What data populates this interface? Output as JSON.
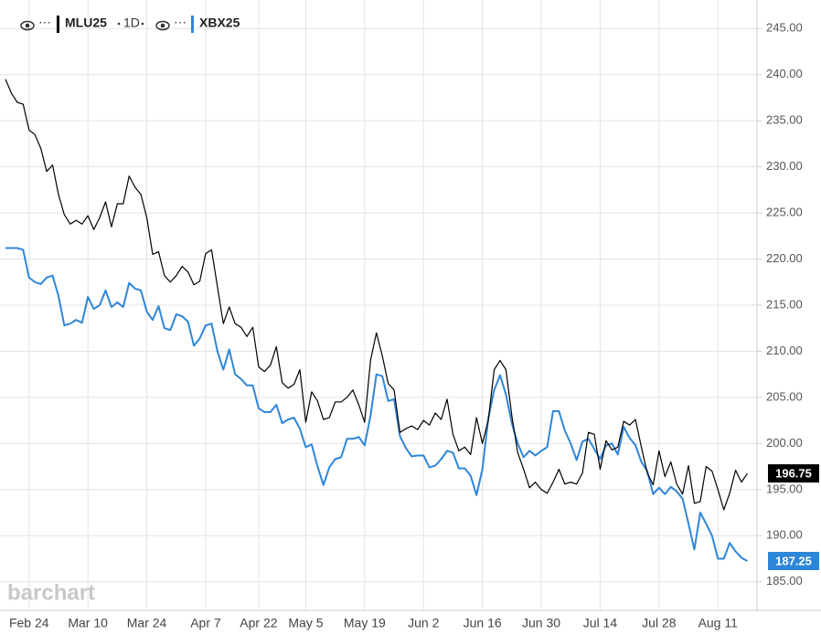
{
  "chart_data": {
    "type": "line",
    "interval": "1D",
    "watermark": "barchart",
    "categories": [
      null,
      null,
      null,
      null,
      "Feb 24",
      null,
      null,
      null,
      null,
      null,
      null,
      null,
      null,
      null,
      "Mar 10",
      null,
      null,
      null,
      null,
      null,
      null,
      null,
      null,
      null,
      "Mar 24",
      null,
      null,
      null,
      null,
      null,
      null,
      null,
      null,
      null,
      "Apr 7",
      null,
      null,
      null,
      null,
      null,
      null,
      null,
      null,
      "Apr 22",
      null,
      null,
      null,
      null,
      null,
      null,
      null,
      "May 5",
      null,
      null,
      null,
      null,
      null,
      null,
      null,
      null,
      null,
      "May 19",
      null,
      null,
      null,
      null,
      null,
      null,
      null,
      null,
      null,
      "Jun 2",
      null,
      null,
      null,
      null,
      null,
      null,
      null,
      null,
      null,
      "Jun 16",
      null,
      null,
      null,
      null,
      null,
      null,
      null,
      null,
      null,
      "Jun 30",
      null,
      null,
      null,
      null,
      null,
      null,
      null,
      null,
      null,
      "Jul 14",
      null,
      null,
      null,
      null,
      null,
      null,
      null,
      null,
      null,
      "Jul 28",
      null,
      null,
      null,
      null,
      null,
      null,
      null,
      null,
      null,
      "Aug 11",
      null,
      null,
      null,
      null,
      null
    ],
    "series": [
      {
        "name": "MLU25",
        "color": "#000000",
        "values": [
          239.5,
          238,
          237,
          236.8,
          234,
          233.5,
          232,
          229.5,
          230.2,
          227,
          224.8,
          223.8,
          224.2,
          223.8,
          224.7,
          223.2,
          224.5,
          226.2,
          223.5,
          226,
          226,
          229,
          227.8,
          227,
          224.5,
          220.5,
          220.8,
          218.2,
          217.5,
          218.2,
          219.2,
          218.6,
          217.2,
          217.6,
          220.6,
          221,
          217,
          213,
          214.8,
          213,
          212.6,
          211.6,
          212.6,
          208.3,
          207.8,
          208.5,
          210.5,
          206.6,
          206,
          206.4,
          208,
          202.3,
          205.6,
          204.6,
          202.6,
          202.8,
          204.5,
          204.5,
          205,
          205.8,
          204.2,
          202.3,
          209,
          212,
          209.5,
          206.5,
          205.8,
          201.2,
          201.6,
          201.9,
          201.5,
          202.5,
          202,
          203.3,
          202.6,
          204.8,
          201,
          199.2,
          199.6,
          198.8,
          202.8,
          200,
          202.5,
          208,
          209,
          208,
          203,
          199,
          197.2,
          195.2,
          195.8,
          195,
          194.6,
          195.8,
          197.2,
          195.6,
          195.8,
          195.6,
          196.8,
          201.2,
          201,
          197.2,
          200.3,
          199.3,
          199.6,
          202.4,
          202,
          202.6,
          199.6,
          196.8,
          195.5,
          199.2,
          196.4,
          198,
          195.6,
          194.5,
          197.6,
          193.5,
          193.7,
          197.5,
          197,
          195,
          192.8,
          194.6,
          197.1,
          195.8,
          196.75
        ]
      },
      {
        "name": "XBX25",
        "color": "#2e86d8",
        "values": [
          221.2,
          221.2,
          221.2,
          221,
          218,
          217.5,
          217.3,
          218,
          218.2,
          216,
          212.8,
          213,
          213.4,
          213.1,
          215.9,
          214.6,
          215,
          216.6,
          214.8,
          215.3,
          214.8,
          217.4,
          216.8,
          216.6,
          214.3,
          213.4,
          214.9,
          212.5,
          212.3,
          214,
          213.8,
          213.2,
          210.6,
          211.4,
          212.8,
          213,
          210,
          208,
          210.2,
          207.5,
          207,
          206.3,
          206.3,
          203.8,
          203.4,
          203.4,
          204.2,
          202.2,
          202.6,
          202.8,
          201.6,
          199.6,
          199.9,
          197.5,
          195.5,
          197.4,
          198.3,
          198.5,
          200.5,
          200.5,
          200.7,
          199.8,
          203,
          207.5,
          207.3,
          204.6,
          204.8,
          200.8,
          199.5,
          198.6,
          198.7,
          198.7,
          197.4,
          197.6,
          198.3,
          199.2,
          199,
          197.3,
          197.3,
          196.5,
          194.4,
          197.2,
          202.7,
          205.8,
          207.4,
          205.3,
          202.2,
          200,
          198.5,
          199.2,
          198.7,
          199.2,
          199.6,
          203.5,
          203.5,
          201.4,
          200,
          198.2,
          200.2,
          200.5,
          199.4,
          198.3,
          199.8,
          200,
          198.8,
          201.8,
          200.6,
          199.8,
          198,
          197,
          194.5,
          195.2,
          194.5,
          195.3,
          194.8,
          194,
          191.3,
          188.5,
          192.5,
          191.3,
          190,
          187.5,
          187.5,
          189.2,
          188.3,
          187.6,
          187.25
        ]
      }
    ],
    "ylim": [
      181.9,
      248.1
    ],
    "yticks": [
      {
        "value": 185,
        "label": "185.00"
      },
      {
        "value": 190,
        "label": "190.00"
      },
      {
        "value": 195,
        "label": "195.00"
      },
      {
        "value": 200,
        "label": "200.00"
      },
      {
        "value": 205,
        "label": "205.00"
      },
      {
        "value": 210,
        "label": "210.00"
      },
      {
        "value": 215,
        "label": "215.00"
      },
      {
        "value": 220,
        "label": "220.00"
      },
      {
        "value": 225,
        "label": "225.00"
      },
      {
        "value": 230,
        "label": "230.00"
      },
      {
        "value": 235,
        "label": "235.00"
      },
      {
        "value": 240,
        "label": "240.00"
      },
      {
        "value": 245,
        "label": "245.00"
      }
    ],
    "grid": true,
    "y_axis_side": "right",
    "last_value_labels": true
  }
}
